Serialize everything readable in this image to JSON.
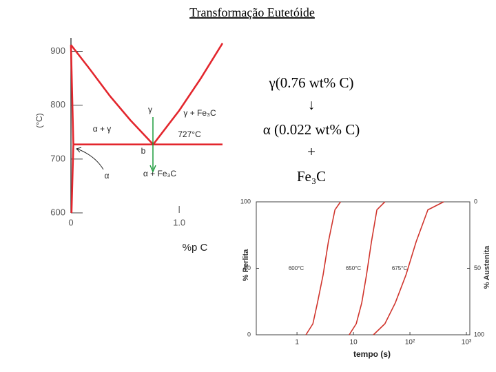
{
  "title": "Transformação Eutetóide",
  "reaction": [
    "γ(0.76 wt% C)",
    "↓",
    "α (0.022 wt% C)",
    "+",
    "Fe₃C"
  ],
  "chart_data": [
    {
      "type": "line",
      "xlabel": "%p C",
      "ylabel": "(°C)",
      "xlim": [
        0,
        1.4
      ],
      "ylim": [
        600,
        925
      ],
      "xticks": [
        0,
        {
          "value": 1,
          "label": "1.0"
        }
      ],
      "yticks": [
        600,
        700,
        800,
        900
      ],
      "series": [
        {
          "color": "#e3262d",
          "x": [
            0,
            0.17,
            0.36,
            0.55,
            0.76
          ],
          "values": [
            912,
            868,
            817,
            772,
            727
          ]
        },
        {
          "color": "#e3262d",
          "x": [
            0.76,
            1.0,
            1.2,
            1.4
          ],
          "values": [
            727,
            790,
            850,
            915
          ]
        },
        {
          "color": "#e3262d",
          "x": [
            0.022,
            1.4
          ],
          "values": [
            727,
            727
          ]
        },
        {
          "color": "#e3262d",
          "x": [
            0,
            0.022
          ],
          "values": [
            912,
            727
          ]
        },
        {
          "color": "#e3262d",
          "x": [
            0.022,
            0.005
          ],
          "values": [
            727,
            600
          ]
        }
      ],
      "annotations": [
        "γ",
        "α + γ",
        "γ + Fe₃C",
        "727°C",
        "b",
        "α + Fe₃C",
        "α"
      ]
    },
    {
      "type": "line",
      "xscale": "log",
      "xlabel": "tempo (s)",
      "ylabel": "% Perlita",
      "y2label": "% Austenita",
      "xlim": [
        0.19,
        1150
      ],
      "ylim": [
        0,
        100
      ],
      "y2lim": [
        100,
        0
      ],
      "xticks": [
        1,
        10,
        {
          "value": 100,
          "label": "10²"
        },
        {
          "value": 1000,
          "label": "10³"
        }
      ],
      "yticks": [
        0,
        50,
        100
      ],
      "y2ticks": [
        0,
        50,
        100
      ],
      "series": [
        {
          "name": "600°C",
          "color": "#d0342c",
          "x": [
            1.44,
            1.91,
            2.3,
            2.9,
            3.6,
            4.7,
            5.9
          ],
          "values": [
            0,
            8.3,
            24,
            45,
            70,
            94,
            100
          ]
        },
        {
          "name": "650°C",
          "color": "#d0342c",
          "x": [
            8.4,
            11.2,
            14,
            17,
            20.8,
            26,
            36
          ],
          "values": [
            0,
            8.3,
            24,
            45,
            70,
            94,
            100
          ]
        },
        {
          "name": "675°C",
          "color": "#d0342c",
          "x": [
            22.6,
            36,
            55,
            85,
            129,
            208,
            396
          ],
          "values": [
            0,
            8.3,
            24,
            45,
            70,
            94,
            100
          ]
        }
      ]
    }
  ]
}
